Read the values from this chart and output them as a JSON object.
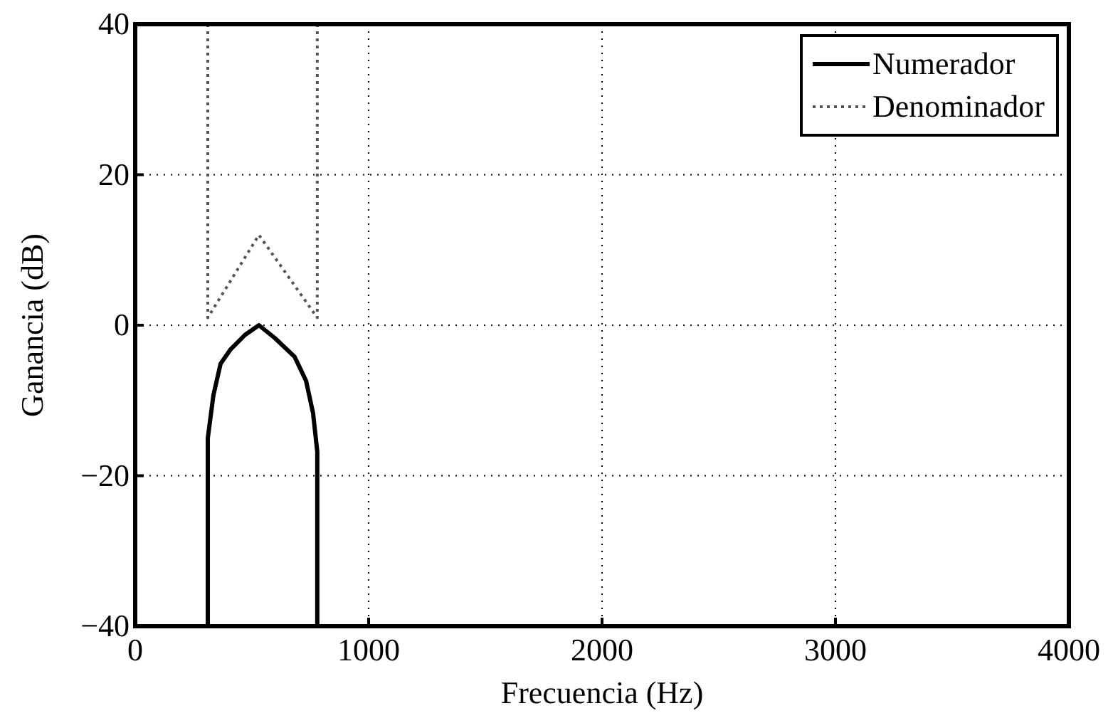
{
  "chart_data": {
    "type": "line",
    "xlabel": "Frecuencia (Hz)",
    "ylabel": "Ganancia (dB)",
    "xlim": [
      0,
      4000
    ],
    "xticks": [
      0,
      1000,
      2000,
      3000,
      4000
    ],
    "ylim": [
      -40,
      40
    ],
    "yticks": [
      {
        "value": -40,
        "label": "−40"
      },
      {
        "value": -20,
        "label": "−20"
      },
      0,
      20,
      40
    ],
    "grid": true,
    "legend": "top right",
    "series": [
      {
        "name": "Numerador",
        "color": "#000000",
        "line_style": "solid",
        "x": [
          311,
          311,
          335,
          366,
          409,
          470,
          530,
          598,
          683,
          732,
          762,
          780,
          780
        ],
        "values": [
          -40,
          -15,
          -9.3,
          -5.1,
          -3.2,
          -1.3,
          0,
          -1.7,
          -4.2,
          -7.4,
          -11.7,
          -16.8,
          -40
        ]
      },
      {
        "name": "Denominador",
        "color": "#555555",
        "line_style": "dotted",
        "x": [
          311,
          311,
          530,
          780,
          780
        ],
        "values": [
          40,
          1,
          12,
          1,
          40
        ]
      }
    ]
  }
}
